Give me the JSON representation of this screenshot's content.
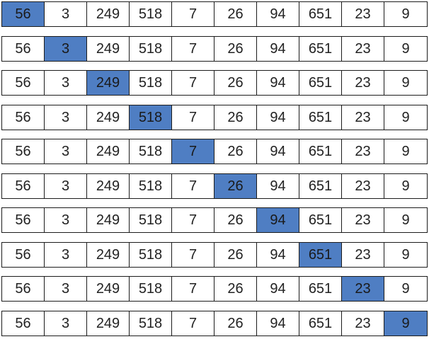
{
  "array": {
    "values": [
      "56",
      "3",
      "249",
      "518",
      "7",
      "26",
      "94",
      "651",
      "23",
      "9"
    ],
    "highlight_color": "#4f7ec3",
    "cell_color": "#ffffff",
    "border_color": "#1c1c1c"
  },
  "rows": [
    {
      "highlight_index": 0
    },
    {
      "highlight_index": 1
    },
    {
      "highlight_index": 2
    },
    {
      "highlight_index": 3
    },
    {
      "highlight_index": 4
    },
    {
      "highlight_index": 5
    },
    {
      "highlight_index": 6
    },
    {
      "highlight_index": 7
    },
    {
      "highlight_index": 8
    },
    {
      "highlight_index": 9
    }
  ]
}
